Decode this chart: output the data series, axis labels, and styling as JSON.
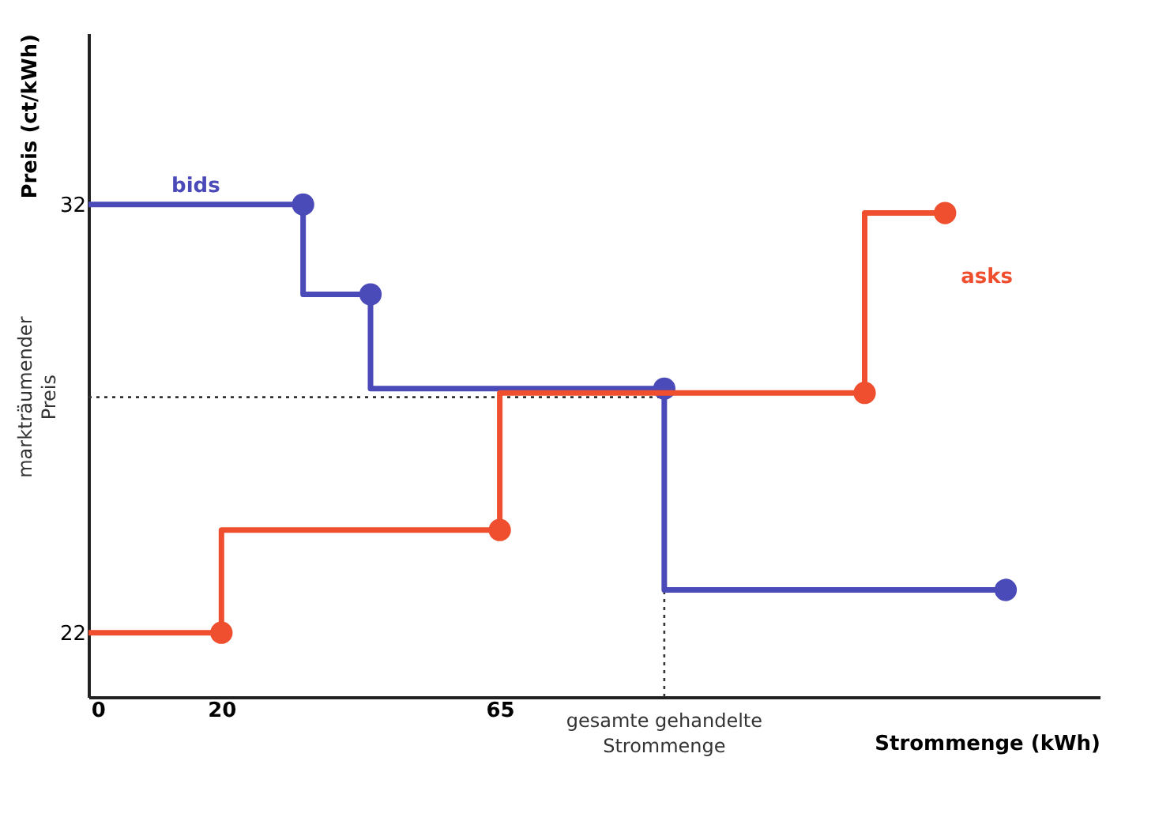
{
  "chart_data": {
    "type": "step",
    "xlabel": "Strommenge (kWh)",
    "ylabel": "Preis (ct/kWh)",
    "xlim": [
      -1.5,
      162
    ],
    "ylim": [
      20.5,
      36
    ],
    "xticks": [
      0,
      20,
      65
    ],
    "yticks": [
      22,
      32
    ],
    "grid": false,
    "marker": "circle",
    "line_style": "solid",
    "series": [
      {
        "name": "bids",
        "color": "#4a4ab8",
        "x": [
          -1.5,
          33.2,
          44.1,
          91.6,
          146.8
        ],
        "values": [
          32,
          32,
          29.9,
          27.7,
          23.0
        ]
      },
      {
        "name": "asks",
        "color": "#ef4f2e",
        "x": [
          -1.5,
          20,
          65,
          124,
          137
        ],
        "values": [
          22,
          22,
          24.4,
          27.6,
          31.8
        ]
      }
    ],
    "ref_lines": [
      {
        "axis": "y",
        "value": 27.5,
        "label": "markträumender Preis",
        "color": "#333333",
        "line_style": "dotted"
      },
      {
        "axis": "x",
        "value": 91.6,
        "label": "gesamte gehandelte Strommenge",
        "color": "#333333",
        "line_style": "dotted"
      }
    ]
  }
}
